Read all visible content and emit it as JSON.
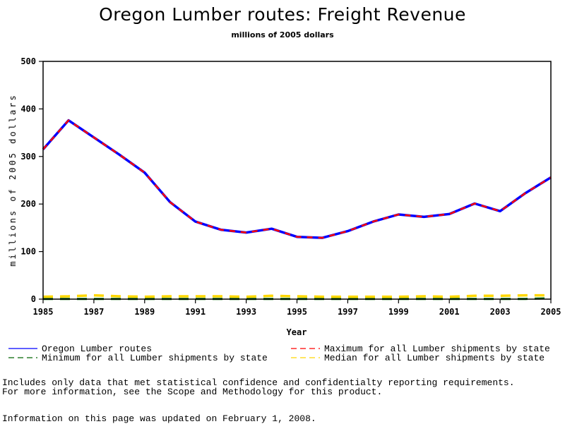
{
  "chart_data": {
    "type": "line",
    "title": "Oregon Lumber routes: Freight Revenue",
    "subtitle": "millions of 2005 dollars",
    "xlabel": "Year",
    "ylabel": "millions of 2005 dollars",
    "xlim": [
      1985,
      2005
    ],
    "ylim": [
      0,
      500
    ],
    "x_ticks": [
      "1985",
      "1987",
      "1989",
      "1991",
      "1993",
      "1995",
      "1997",
      "1999",
      "2001",
      "2003",
      "2005"
    ],
    "y_ticks": [
      "0",
      "100",
      "200",
      "300",
      "400",
      "500"
    ],
    "grid": false,
    "legend_position": "bottom",
    "x": [
      1985,
      1986,
      1987,
      1988,
      1989,
      1990,
      1991,
      1992,
      1993,
      1994,
      1995,
      1996,
      1997,
      1998,
      1999,
      2000,
      2001,
      2002,
      2003,
      2004,
      2005
    ],
    "series": [
      {
        "name": "Oregon Lumber routes",
        "color": "#0000ff",
        "style": "solid",
        "values": [
          315,
          376,
          340,
          304,
          266,
          204,
          163,
          146,
          140,
          148,
          131,
          129,
          143,
          163,
          178,
          173,
          179,
          201,
          185,
          223,
          256
        ]
      },
      {
        "name": "Maximum for all Lumber shipments by state",
        "color": "#ff0000",
        "style": "dashed",
        "values": [
          315,
          376,
          340,
          304,
          266,
          204,
          163,
          146,
          140,
          148,
          131,
          129,
          143,
          163,
          178,
          173,
          179,
          201,
          185,
          223,
          256
        ]
      },
      {
        "name": "Minimum for all Lumber shipments by state",
        "color": "#006400",
        "style": "dashed",
        "values": [
          0.5,
          0.5,
          0.5,
          0.5,
          0.5,
          0.5,
          0.5,
          0.5,
          0.5,
          0.5,
          0.5,
          0.5,
          0.5,
          0.5,
          0.5,
          0.5,
          0.5,
          0.5,
          0.5,
          0.5,
          2
        ]
      },
      {
        "name": "Median for all Lumber shipments by state",
        "color": "#ffd700",
        "style": "dashed",
        "values": [
          5,
          6,
          8,
          6,
          5,
          6,
          6,
          6,
          5,
          7,
          6,
          5,
          5,
          5,
          5,
          6,
          5,
          7,
          7,
          8,
          8
        ]
      }
    ]
  },
  "notes": {
    "line1": "Includes only data that met statistical confidence and confidentialty reporting requirements.",
    "line2": "For more information, see the Scope and Methodology for this product.",
    "updated": "Information on this page was updated on February 1, 2008."
  }
}
